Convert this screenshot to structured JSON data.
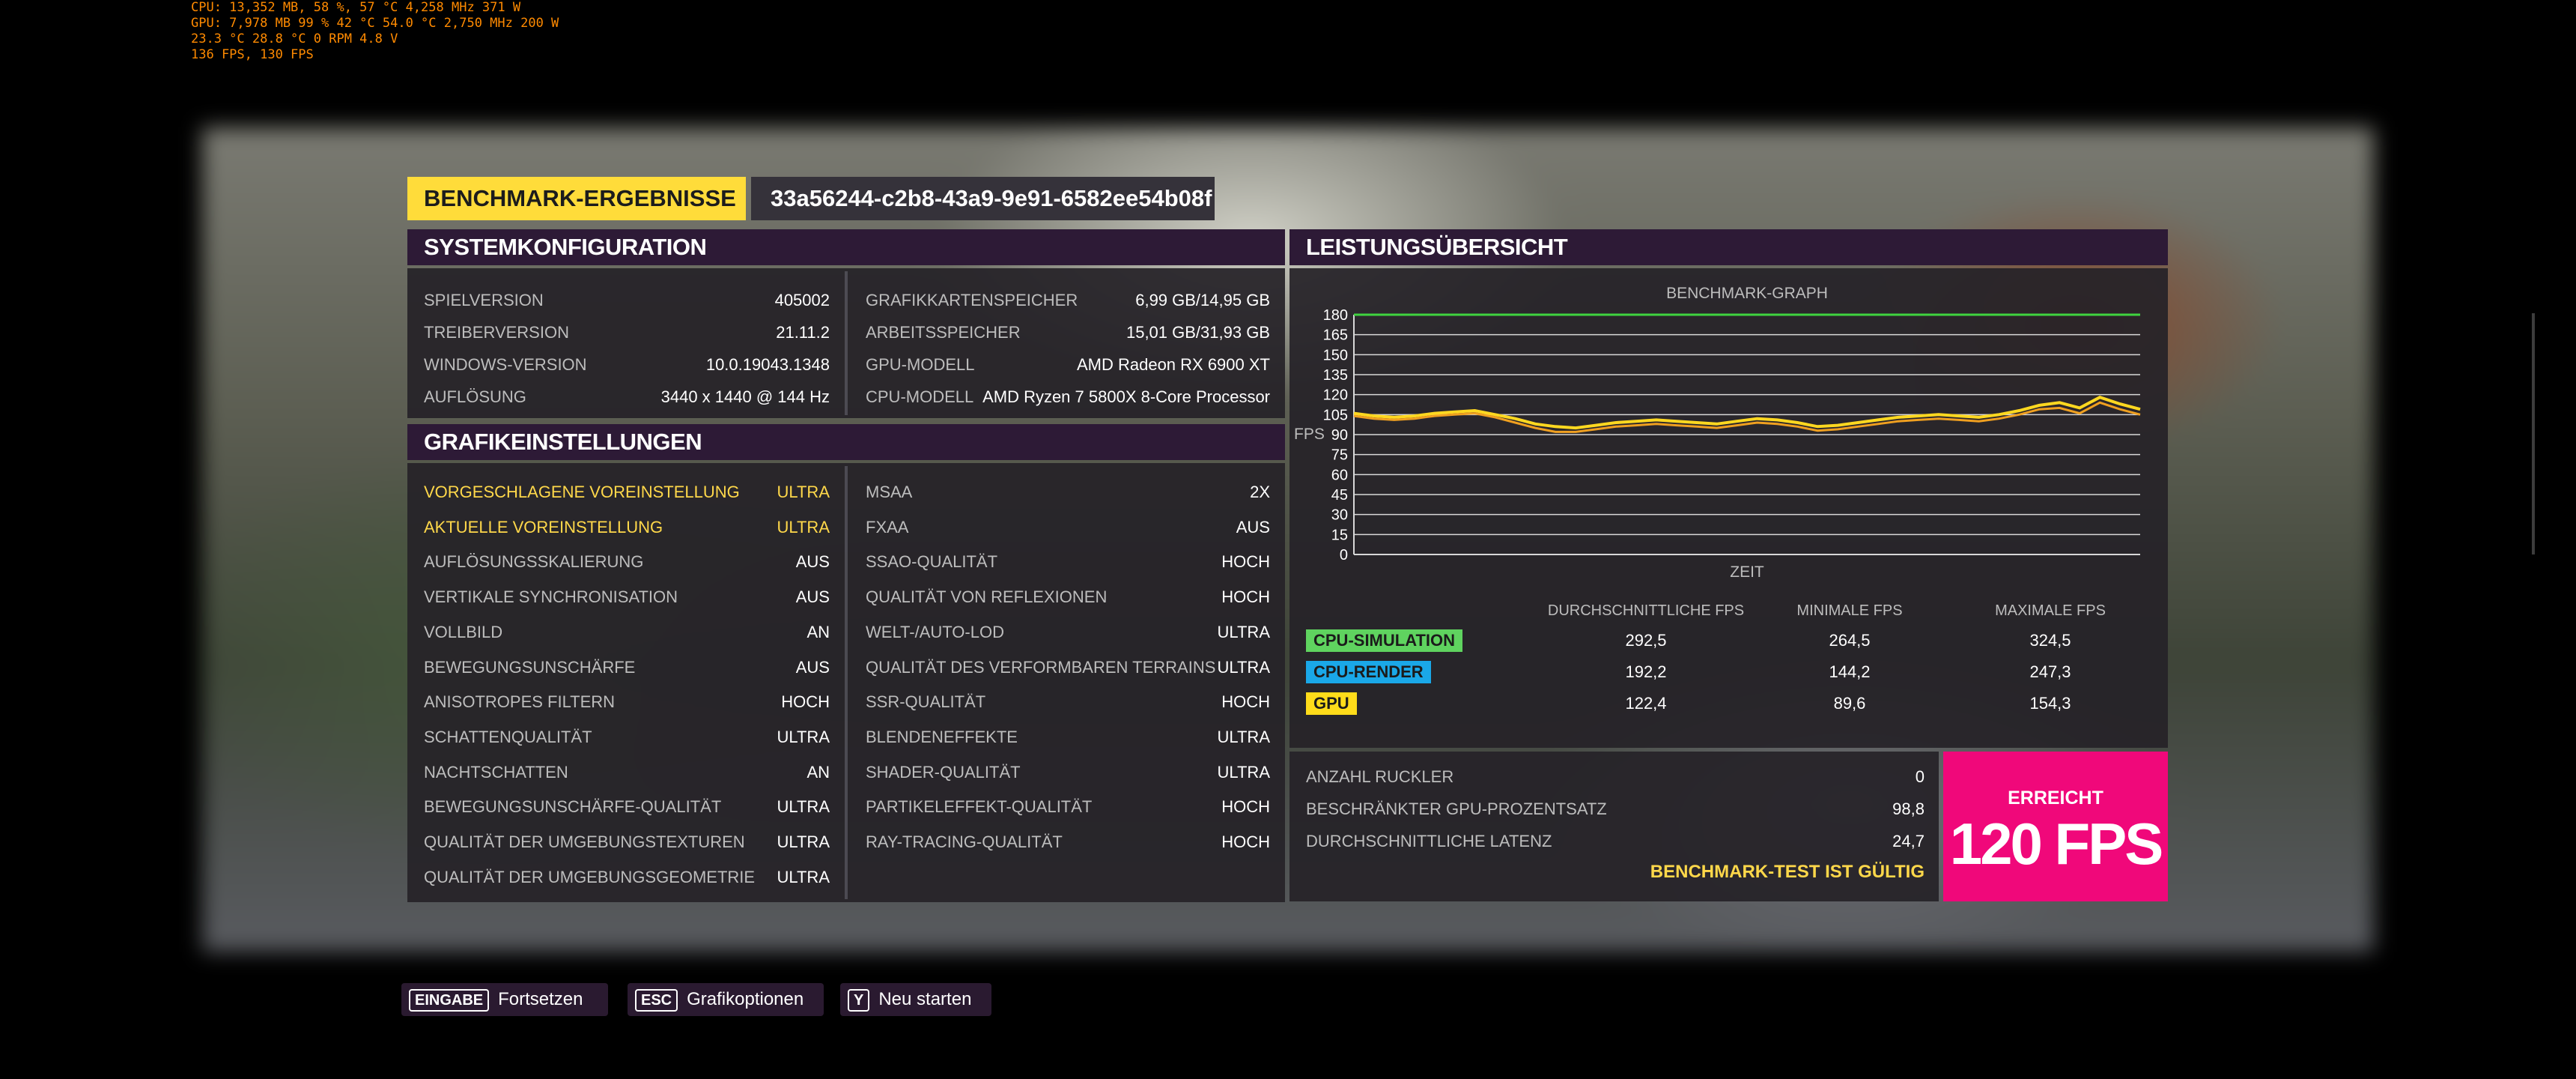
{
  "osd": {
    "line1": "CPU: 13,352 MB, 58 %, 57 °C 4,258 MHz 371 W",
    "line2": "GPU: 7,978 MB 99 % 42 °C 54.0 °C 2,750 MHz 200 W",
    "line3": "23.3 °C 28.8 °C 0 RPM 4.8 V",
    "line4": "136 FPS, 130 FPS"
  },
  "header": {
    "title": "BENCHMARK-ERGEBNISSE",
    "run_id": "33a56244-c2b8-43a9-9e91-6582ee54b08f"
  },
  "system": {
    "title": "SYSTEMKONFIGURATION",
    "left": [
      {
        "label": "SPIELVERSION",
        "value": "405002"
      },
      {
        "label": "TREIBERVERSION",
        "value": "21.11.2"
      },
      {
        "label": "WINDOWS-VERSION",
        "value": "10.0.19043.1348"
      },
      {
        "label": "AUFLÖSUNG",
        "value": "3440 x 1440 @ 144 Hz"
      }
    ],
    "right": [
      {
        "label": "GRAFIKKARTENSPEICHER",
        "value": "6,99 GB/14,95 GB"
      },
      {
        "label": "ARBEITSSPEICHER",
        "value": "15,01 GB/31,93 GB"
      },
      {
        "label": "GPU-MODELL",
        "value": "AMD Radeon RX 6900 XT"
      },
      {
        "label": "CPU-MODELL",
        "value": "AMD Ryzen 7 5800X 8-Core Processor"
      }
    ]
  },
  "graphics": {
    "title": "GRAFIKEINSTELLUNGEN",
    "left": [
      {
        "label": "VORGESCHLAGENE VOREINSTELLUNG",
        "value": "ULTRA"
      },
      {
        "label": "AKTUELLE VOREINSTELLUNG",
        "value": "ULTRA"
      },
      {
        "label": "AUFLÖSUNGSSKALIERUNG",
        "value": "AUS"
      },
      {
        "label": "VERTIKALE SYNCHRONISATION",
        "value": "AUS"
      },
      {
        "label": "VOLLBILD",
        "value": "AN"
      },
      {
        "label": "BEWEGUNGSUNSCHÄRFE",
        "value": "AUS"
      },
      {
        "label": "ANISOTROPES FILTERN",
        "value": "HOCH"
      },
      {
        "label": "SCHATTENQUALITÄT",
        "value": "ULTRA"
      },
      {
        "label": "NACHTSCHATTEN",
        "value": "AN"
      },
      {
        "label": "BEWEGUNGSUNSCHÄRFE-QUALITÄT",
        "value": "ULTRA"
      },
      {
        "label": "QUALITÄT DER UMGEBUNGSTEXTUREN",
        "value": "ULTRA"
      },
      {
        "label": "QUALITÄT DER UMGEBUNGSGEOMETRIE",
        "value": "ULTRA"
      }
    ],
    "right": [
      {
        "label": "MSAA",
        "value": "2X"
      },
      {
        "label": "FXAA",
        "value": "AUS"
      },
      {
        "label": "SSAO-QUALITÄT",
        "value": "HOCH"
      },
      {
        "label": "QUALITÄT VON REFLEXIONEN",
        "value": "HOCH"
      },
      {
        "label": "WELT-/AUTO-LOD",
        "value": "ULTRA"
      },
      {
        "label": "QUALITÄT DES VERFORMBAREN TERRAINS",
        "value": "ULTRA"
      },
      {
        "label": "SSR-QUALITÄT",
        "value": "HOCH"
      },
      {
        "label": "BLENDENEFFEKTE",
        "value": "ULTRA"
      },
      {
        "label": "SHADER-QUALITÄT",
        "value": "ULTRA"
      },
      {
        "label": "PARTIKELEFFEKT-QUALITÄT",
        "value": "HOCH"
      },
      {
        "label": "RAY-TRACING-QUALITÄT",
        "value": "HOCH"
      }
    ]
  },
  "performance": {
    "title": "LEISTUNGSÜBERSICHT",
    "col_headers": [
      "DURCHSCHNITTLICHE FPS",
      "MINIMALE FPS",
      "MAXIMALE FPS"
    ],
    "rows": [
      {
        "label": "CPU-SIMULATION",
        "color": "#5fd35f",
        "avg": "292,5",
        "min": "264,5",
        "max": "324,5"
      },
      {
        "label": "CPU-RENDER",
        "color": "#1aa8e8",
        "avg": "192,2",
        "min": "144,2",
        "max": "247,3"
      },
      {
        "label": "GPU",
        "color": "#ffdc1a",
        "avg": "122,4",
        "min": "89,6",
        "max": "154,3"
      }
    ],
    "metrics": [
      {
        "label": "ANZAHL RUCKLER",
        "value": "0"
      },
      {
        "label": "BESCHRÄNKTER GPU-PROZENTSATZ",
        "value": "98,8"
      },
      {
        "label": "DURCHSCHNITTLICHE LATENZ",
        "value": "24,7"
      }
    ],
    "valid_text": "BENCHMARK-TEST IST GÜLTIG",
    "achieved_label": "ERREICHT",
    "achieved_value": "120 FPS"
  },
  "chart_data": {
    "type": "line",
    "title": "BENCHMARK-GRAPH",
    "xlabel": "ZEIT",
    "ylabel": "FPS",
    "ylim": [
      0,
      180
    ],
    "yticks": [
      0,
      15,
      30,
      45,
      60,
      75,
      90,
      105,
      120,
      135,
      150,
      165,
      180
    ],
    "grid": true,
    "series": [
      {
        "color": "#2030d0",
        "values": [
          180,
          180,
          180,
          180,
          180,
          180,
          180,
          180,
          180,
          180,
          180,
          180,
          180,
          180,
          180,
          180,
          180,
          180,
          180,
          180,
          180,
          180,
          180,
          180,
          180,
          180,
          180,
          180,
          180,
          180,
          180,
          180,
          180,
          180,
          180,
          180,
          180,
          180,
          180,
          180
        ]
      },
      {
        "color": "#ffd820",
        "values": [
          106,
          104,
          103,
          104,
          106,
          107,
          108,
          105,
          102,
          98,
          96,
          95,
          97,
          99,
          100,
          101,
          100,
          99,
          98,
          100,
          102,
          101,
          99,
          96,
          97,
          99,
          101,
          103,
          104,
          105,
          104,
          103,
          105,
          108,
          112,
          114,
          110,
          118,
          113,
          109
        ]
      },
      {
        "color": "#f0a020",
        "values": [
          104,
          102,
          101,
          102,
          104,
          105,
          106,
          103,
          99,
          95,
          92,
          92,
          94,
          96,
          97,
          98,
          97,
          96,
          95,
          97,
          99,
          98,
          96,
          93,
          94,
          96,
          98,
          100,
          101,
          102,
          101,
          100,
          102,
          105,
          109,
          110,
          106,
          114,
          109,
          105
        ]
      },
      {
        "color": "#3fd43f",
        "values": [
          180,
          180,
          180,
          180,
          180,
          180,
          180,
          180,
          180,
          180,
          180,
          180,
          180,
          180,
          180,
          180,
          180,
          180,
          180,
          180,
          180,
          180,
          180,
          180,
          180,
          180,
          180,
          180,
          180,
          180,
          180,
          180,
          180,
          180,
          180,
          180,
          180,
          180,
          180,
          180
        ]
      }
    ]
  }
}
